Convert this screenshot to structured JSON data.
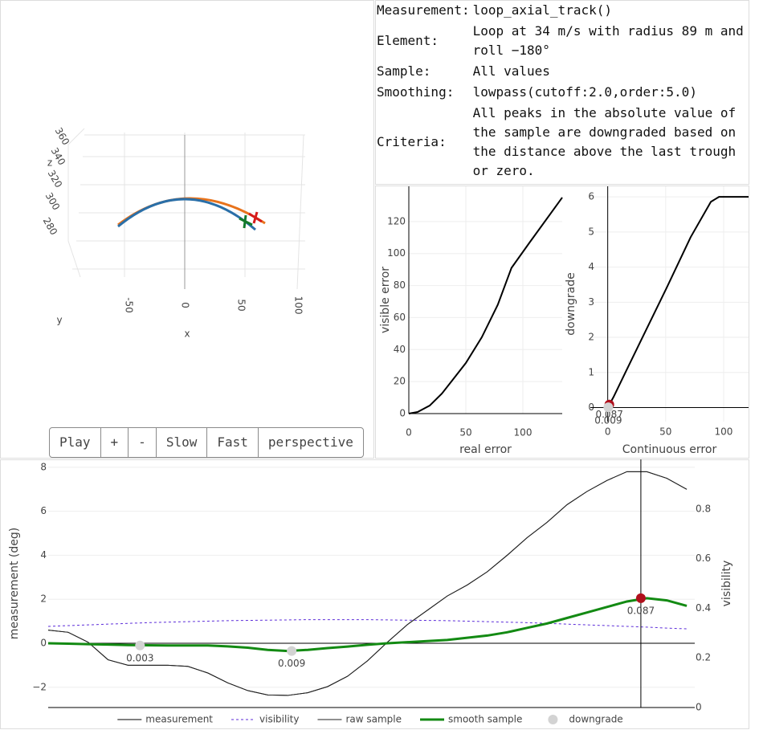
{
  "scene": {
    "type": "scatter3d",
    "xlabel": "x",
    "ylabel": "y",
    "zlabel": "z",
    "xticks": [
      -50,
      0,
      50,
      100
    ],
    "zticks": [
      280,
      300,
      320,
      340,
      360
    ]
  },
  "controls": {
    "buttons": [
      "Play",
      "+",
      "-",
      "Slow",
      "Fast",
      "perspective"
    ]
  },
  "info": {
    "rows": [
      [
        "Measurement:",
        "loop_axial_track()"
      ],
      [
        "Element:",
        "Loop at 34 m/s with radius 89 m and roll −180°"
      ],
      [
        "Sample:",
        "All values"
      ],
      [
        "Smoothing:",
        "lowpass(cutoff:2.0,order:5.0)"
      ],
      [
        "Criteria:",
        "All peaks in the absolute value of the sample are downgraded based on the distance above the last trough or zero."
      ]
    ]
  },
  "chart_data": [
    {
      "type": "line",
      "xlabel": "real error",
      "ylabel": "visible error",
      "x": [
        0,
        7.7,
        18.3,
        29,
        39,
        50,
        64,
        78,
        90,
        106,
        134.5
      ],
      "series": [
        {
          "color": "#000000",
          "width": 2,
          "values": [
            0,
            1,
            5,
            12.5,
            21.6,
            31.6,
            47.7,
            68,
            91,
            107,
            135
          ]
        }
      ],
      "xlim": [
        0,
        134.5
      ],
      "ylim": [
        0,
        142
      ],
      "xticks": [
        0,
        50,
        100
      ],
      "yticks": [
        0,
        20,
        40,
        60,
        80,
        100,
        120
      ],
      "grid": true,
      "zeroline": [
        "x",
        "y"
      ]
    },
    {
      "type": "line",
      "xlabel": "Continuous error",
      "ylabel": "downgrade",
      "x": [
        0,
        5,
        16,
        30,
        50.7,
        71.5,
        89,
        96,
        121.5
      ],
      "series": [
        {
          "color": "#000000",
          "width": 2,
          "values": [
            0,
            0.3,
            1.05,
            2,
            3.4,
            4.85,
            5.86,
            6,
            6
          ]
        },
        {
          "mode": "markers",
          "x": [
            1.4,
            0.5
          ],
          "values": [
            0.087,
            0.009
          ],
          "colors": [
            "#b0101c",
            "#d3d3d3"
          ],
          "show_values": true
        }
      ],
      "xlim": [
        -15,
        121.5
      ],
      "ylim": [
        -0.4,
        6.3
      ],
      "xticks": [
        0,
        50,
        100
      ],
      "yticks": [
        0,
        1,
        2,
        3,
        4,
        5,
        6
      ],
      "grid": true,
      "zeroline": [
        "x",
        "y"
      ]
    },
    {
      "type": "line",
      "ylabel": "measurement (deg)",
      "y2label": "visibility",
      "x": [
        0,
        1,
        2,
        3,
        4,
        5,
        6,
        7,
        8,
        9,
        10,
        11,
        12,
        13,
        14,
        15,
        16,
        17,
        18,
        19,
        20,
        21,
        22,
        23,
        24,
        25,
        26,
        27,
        28,
        29,
        30,
        31,
        32
      ],
      "xlim": [
        0,
        32.4
      ],
      "ylim": [
        -2.92,
        8.36
      ],
      "yticks": [
        {
          "value": -2,
          "label": "−2"
        },
        0,
        2,
        4,
        6,
        8
      ],
      "y2lim": [
        0,
        1.0
      ],
      "y2ticks": [
        0,
        0.2,
        0.4,
        0.6,
        0.8
      ],
      "grid": true,
      "zeroline": [
        "y",
        "y2"
      ],
      "legend": "bottom",
      "series": [
        {
          "name": "measurement",
          "color": "#000000",
          "width": 1,
          "values": [
            0.6,
            0.5,
            0.05,
            -0.75,
            -1.0,
            -1.0,
            -1.0,
            -1.05,
            -1.35,
            -1.8,
            -2.15,
            -2.35,
            -2.37,
            -2.25,
            -1.97,
            -1.5,
            -0.8,
            0.05,
            0.85,
            1.5,
            2.15,
            2.65,
            3.25,
            4.0,
            4.8,
            5.5,
            6.3,
            6.9,
            7.4,
            7.8,
            7.8,
            7.5,
            7.0
          ]
        },
        {
          "name": "visibility",
          "color": "#5b2bd9",
          "width": 1,
          "dash": "dot",
          "axis": "y2",
          "values": [
            0.327,
            0.33,
            0.333,
            0.336,
            0.339,
            0.342,
            0.344,
            0.346,
            0.348,
            0.35,
            0.351,
            0.352,
            0.353,
            0.354,
            0.354,
            0.354,
            0.354,
            0.353,
            0.352,
            0.351,
            0.35,
            0.348,
            0.346,
            0.344,
            0.342,
            0.339,
            0.336,
            0.333,
            0.33,
            0.327,
            0.324,
            0.32,
            0.317
          ]
        },
        {
          "name": "raw sample",
          "color": "#222222",
          "width": 1,
          "values": [
            0.6,
            0.5,
            0.05,
            -0.75,
            -1.0,
            -1.0,
            -1.0,
            -1.05,
            -1.35,
            -1.8,
            -2.15,
            -2.35,
            -2.37,
            -2.25,
            -1.97,
            -1.5,
            -0.8,
            0.05,
            0.85,
            1.5,
            2.15,
            2.65,
            3.25,
            4.0,
            4.8,
            5.5,
            6.3,
            6.9,
            7.4,
            7.8,
            7.8,
            7.5,
            7.0
          ]
        },
        {
          "name": "smooth sample",
          "color": "#138a13",
          "width": 3,
          "values": [
            0,
            -0.02,
            -0.04,
            -0.06,
            -0.08,
            -0.09,
            -0.1,
            -0.1,
            -0.1,
            -0.14,
            -0.2,
            -0.3,
            -0.35,
            -0.3,
            -0.22,
            -0.15,
            -0.07,
            0,
            0.05,
            0.1,
            0.15,
            0.25,
            0.35,
            0.5,
            0.7,
            0.9,
            1.15,
            1.4,
            1.65,
            1.9,
            2.05,
            1.95,
            1.7
          ]
        },
        {
          "name": "downgrade",
          "mode": "markers",
          "x": [
            4.6,
            12.2,
            29.7
          ],
          "values": [
            -0.1,
            -0.35,
            2.05
          ],
          "labels": [
            0.003,
            0.009,
            0.087
          ],
          "color": "#d3d3d3",
          "colors": [
            "#d3d3d3",
            "#d3d3d3",
            "#b0101c"
          ]
        }
      ]
    }
  ]
}
